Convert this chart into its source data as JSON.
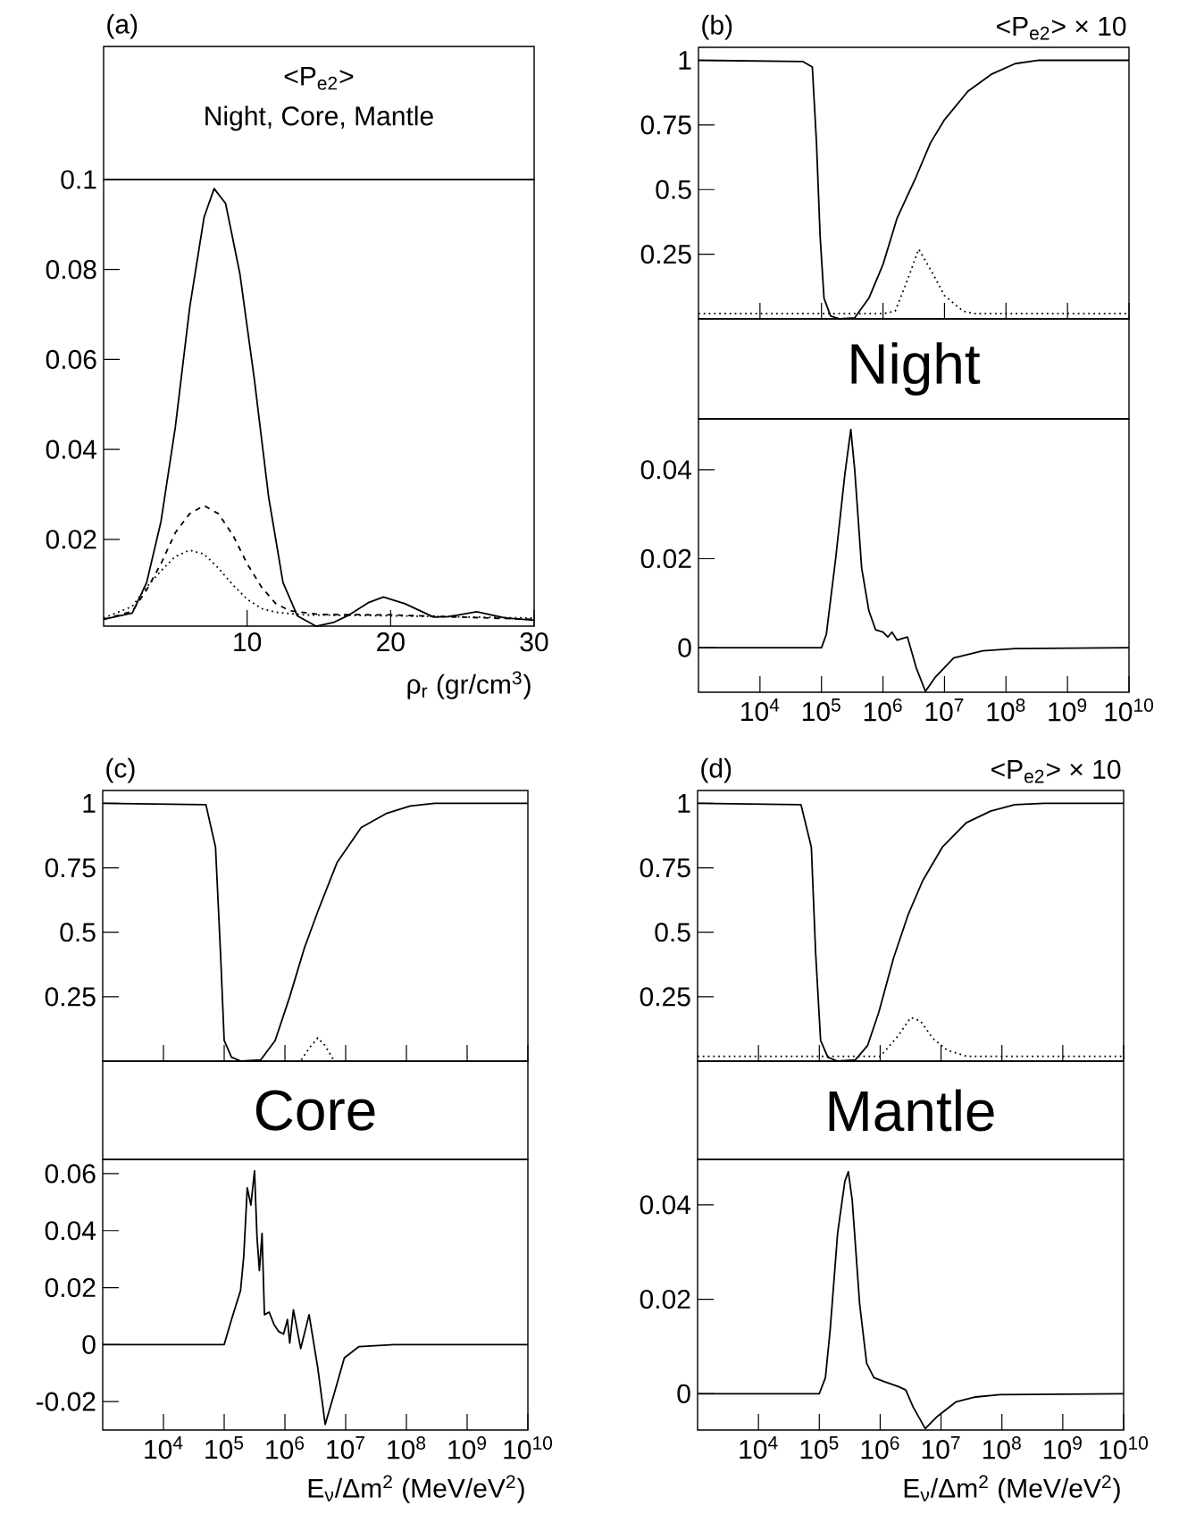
{
  "chart_data": [
    {
      "type": "line",
      "title": "(a)",
      "annotations": [
        "<P$_{e2}$>",
        "Night, Core, Mantle"
      ],
      "xlabel": "ρ$_{r}$ (gr/cm$^{3}$)",
      "xlim": [
        0,
        30
      ],
      "ylim": [
        0.0007,
        0.1
      ],
      "xticks": [
        10,
        20,
        30
      ],
      "yticks": [
        0.02,
        0.04,
        0.06,
        0.08,
        0.1
      ],
      "series": [
        {
          "color": "#000000",
          "line_style": "solid",
          "x": [
            0,
            2,
            3,
            4,
            5,
            6,
            7,
            7.7,
            8.5,
            9.5,
            10.5,
            11.5,
            12.5,
            13.5,
            14.8,
            16,
            17,
            18.5,
            19.5,
            21,
            23,
            24,
            26,
            28,
            30
          ],
          "values": [
            0.0022,
            0.0036,
            0.0104,
            0.024,
            0.045,
            0.0716,
            0.0916,
            0.098,
            0.0947,
            0.079,
            0.0557,
            0.0294,
            0.0104,
            0.003,
            0.0007,
            0.0015,
            0.003,
            0.006,
            0.0072,
            0.0057,
            0.0027,
            0.0028,
            0.0039,
            0.0025,
            0.002
          ]
        },
        {
          "color": "#000000",
          "line_style": "dashed",
          "x": [
            0,
            2,
            3,
            4,
            5,
            6,
            7,
            8,
            9,
            10,
            11,
            12,
            13,
            15,
            20,
            25,
            30
          ],
          "values": [
            0.0022,
            0.004,
            0.0088,
            0.0146,
            0.0215,
            0.0257,
            0.0275,
            0.0257,
            0.021,
            0.0146,
            0.0094,
            0.0057,
            0.0041,
            0.0033,
            0.0032,
            0.0027,
            0.0022
          ]
        },
        {
          "color": "#000000",
          "line_style": "dotted",
          "x": [
            0,
            2,
            3,
            4,
            5,
            6,
            7,
            8,
            9,
            10,
            11,
            12,
            14,
            20,
            30
          ],
          "values": [
            0.0025,
            0.0051,
            0.0094,
            0.013,
            0.0162,
            0.0176,
            0.0167,
            0.0136,
            0.0099,
            0.0067,
            0.0046,
            0.0038,
            0.0032,
            0.003,
            0.0025
          ]
        }
      ]
    },
    {
      "type": "line",
      "title": "(b)",
      "annotations": [
        "<P$_{e2}$> × 10"
      ],
      "log": "x",
      "tick_labels": "y",
      "xlim": [
        1000.0,
        10000000000.0
      ],
      "ylim": [
        0,
        1.05
      ],
      "xticks": [
        {
          "value": 10000.0,
          "label": null
        },
        {
          "value": 100000.0,
          "label": null
        },
        {
          "value": 1000000.0,
          "label": null
        },
        {
          "value": 10000000.0,
          "label": null
        },
        {
          "value": 100000000.0,
          "label": null
        },
        {
          "value": 1000000000.0,
          "label": null
        },
        {
          "value": 10000000000.0,
          "label": null
        }
      ],
      "yticks": [
        0.25,
        0.5,
        0.75,
        1
      ],
      "series": [
        {
          "color": "#000000",
          "line_style": "solid",
          "x": [
            1000.0,
            50000.0,
            71000.0,
            83000.0,
            95000.0,
            110000.0,
            141000.0,
            200000.0,
            347000.0,
            590000.0,
            1000000.0,
            1700000.0,
            3470000.0,
            5900000.0,
            10000000.0,
            24000000.0,
            59000000.0,
            141000000.0,
            347000000.0,
            10000000000.0
          ],
          "values": [
            1,
            0.995,
            0.974,
            0.68,
            0.32,
            0.08,
            0.011,
            0,
            0.004,
            0.08,
            0.21,
            0.39,
            0.55,
            0.68,
            0.77,
            0.88,
            0.947,
            0.987,
            1,
            1
          ]
        },
        {
          "color": "#000000",
          "line_style": "dotted",
          "x": [
            1000.0,
            1000000.0,
            1580000.0,
            2500000.0,
            3800000.0,
            6300000.0,
            10000000.0,
            20000000.0,
            31600000.0,
            10000000000.0
          ],
          "values": [
            0.02,
            0.02,
            0.03,
            0.15,
            0.27,
            0.18,
            0.09,
            0.03,
            0.02,
            0.02
          ]
        }
      ]
    },
    {
      "type": "line",
      "title": "Night",
      "log": "x",
      "xlim": [
        1000.0,
        10000000000.0
      ],
      "ylim": [
        -0.01,
        0.0514
      ],
      "xticks": [
        {
          "value": 10000.0,
          "label": "10$^{4}$"
        },
        {
          "value": 100000.0,
          "label": "10$^{5}$"
        },
        {
          "value": 1000000.0,
          "label": "10$^{6}$"
        },
        {
          "value": 10000000.0,
          "label": "10$^{7}$"
        },
        {
          "value": 100000000.0,
          "label": "10$^{8}$"
        },
        {
          "value": 1000000000.0,
          "label": "10$^{9}$"
        },
        {
          "value": 10000000000.0,
          "label": "10$^{10}$"
        }
      ],
      "yticks": [
        0,
        0.02,
        0.04
      ],
      "series": [
        {
          "color": "#000000",
          "line_style": "solid",
          "x": [
            1000.0,
            100000.0,
            120000.0,
            170000.0,
            240000.0,
            300000.0,
            347000.0,
            450000.0,
            590000.0,
            760000.0,
            1000000.0,
            1200000.0,
            1400000.0,
            1700000.0,
            2500000.0,
            3470000.0,
            4900000.0,
            7100000.0,
            14100000.0,
            42000000.0,
            141000000.0,
            10000000000.0
          ],
          "values": [
            0,
            0,
            0.003,
            0.02,
            0.039,
            0.049,
            0.04,
            0.0179,
            0.0083,
            0.004,
            0.0035,
            0.0024,
            0.0035,
            0.0017,
            0.0024,
            -0.0045,
            -0.0098,
            -0.0066,
            -0.0023,
            -0.0007,
            -0.0002,
            0
          ]
        }
      ]
    },
    {
      "type": "line",
      "title": "(c)",
      "log": "x",
      "tick_labels": "y",
      "xlim": [
        1000.0,
        10000000000.0
      ],
      "ylim": [
        0,
        1.05
      ],
      "xticks": [
        {
          "value": 10000.0,
          "label": null
        },
        {
          "value": 100000.0,
          "label": null
        },
        {
          "value": 1000000.0,
          "label": null
        },
        {
          "value": 10000000.0,
          "label": null
        },
        {
          "value": 100000000.0,
          "label": null
        },
        {
          "value": 1000000000.0,
          "label": null
        },
        {
          "value": 10000000000.0,
          "label": null
        }
      ],
      "yticks": [
        0.25,
        0.5,
        0.75,
        1
      ],
      "series": [
        {
          "color": "#000000",
          "line_style": "solid",
          "x": [
            1000.0,
            50000.0,
            72000.0,
            87000.0,
            100000.0,
            132000.0,
            190000.0,
            400000.0,
            690000.0,
            1200000.0,
            2100000.0,
            3600000.0,
            7200000.0,
            18000000.0,
            46000000.0,
            115000000.0,
            290000000.0,
            10000000000.0
          ],
          "values": [
            1,
            0.995,
            0.83,
            0.42,
            0.08,
            0.015,
            0,
            0.005,
            0.08,
            0.25,
            0.44,
            0.59,
            0.77,
            0.906,
            0.96,
            0.99,
            1,
            1
          ]
        },
        {
          "color": "#000000",
          "line_style": "dotted",
          "x": [
            1860000.0,
            2500000.0,
            3470000.0,
            4600000.0,
            6300000.0
          ],
          "values": [
            0.005,
            0.05,
            0.09,
            0.06,
            0.005
          ]
        }
      ]
    },
    {
      "type": "line",
      "title": "Core",
      "xlabel": "E$_{ν}$/Δm$^{2}$ (MeV/eV$^{2}$)",
      "log": "x",
      "xlim": [
        1000.0,
        10000000000.0
      ],
      "ylim": [
        -0.03,
        0.065
      ],
      "xticks": [
        {
          "value": 10000.0,
          "label": "10$^{4}$"
        },
        {
          "value": 100000.0,
          "label": "10$^{5}$"
        },
        {
          "value": 1000000.0,
          "label": "10$^{6}$"
        },
        {
          "value": 10000000.0,
          "label": "10$^{7}$"
        },
        {
          "value": 100000000.0,
          "label": "10$^{8}$"
        },
        {
          "value": 1000000000.0,
          "label": "10$^{9}$"
        },
        {
          "value": 10000000000.0,
          "label": "10$^{10}$"
        }
      ],
      "yticks": [
        -0.02,
        0,
        0.02,
        0.04,
        0.06
      ],
      "series": [
        {
          "color": "#000000",
          "line_style": "solid",
          "x": [
            1000.0,
            100000.0,
            132000.0,
            186000.0,
            210000.0,
            240000.0,
            275000.0,
            316000.0,
            347000.0,
            380000.0,
            420000.0,
            460000.0,
            550000.0,
            660000.0,
            790000.0,
            950000.0,
            1100000.0,
            1200000.0,
            1380000.0,
            1820000.0,
            2500000.0,
            3470000.0,
            4600000.0,
            6600000.0,
            9500000.0,
            16600000.0,
            63000000.0,
            10000000000.0
          ],
          "values": [
            0,
            0,
            0.0088,
            0.019,
            0.031,
            0.055,
            0.049,
            0.061,
            0.0376,
            0.026,
            0.039,
            0.0105,
            0.0114,
            0.0071,
            0.0046,
            0.0037,
            0.0088,
            0.0005,
            0.0122,
            -0.0014,
            0.0105,
            -0.0081,
            -0.028,
            -0.0166,
            -0.0047,
            -0.0007,
            0,
            0
          ]
        }
      ]
    },
    {
      "type": "line",
      "title": "(d)",
      "annotations": [
        "<P$_{e2}$> × 10"
      ],
      "log": "x",
      "tick_labels": "y",
      "xlim": [
        1000.0,
        10000000000.0
      ],
      "ylim": [
        0,
        1.05
      ],
      "xticks": [
        {
          "value": 10000.0,
          "label": null
        },
        {
          "value": 100000.0,
          "label": null
        },
        {
          "value": 1000000.0,
          "label": null
        },
        {
          "value": 10000000.0,
          "label": null
        },
        {
          "value": 100000000.0,
          "label": null
        },
        {
          "value": 1000000000.0,
          "label": null
        },
        {
          "value": 10000000000.0,
          "label": null
        }
      ],
      "yticks": [
        0.25,
        0.5,
        0.75,
        1
      ],
      "series": [
        {
          "color": "#000000",
          "line_style": "solid",
          "x": [
            1000.0,
            50000.0,
            74000.0,
            87000.0,
            105000.0,
            138000.0,
            200000.0,
            390000.0,
            620000.0,
            950000.0,
            1660000.0,
            2900000.0,
            5000000.0,
            10500000.0,
            26000000.0,
            65000000.0,
            162000000.0,
            500000000.0,
            10000000000.0
          ],
          "values": [
            1,
            0.995,
            0.83,
            0.42,
            0.08,
            0.015,
            0,
            0.005,
            0.06,
            0.19,
            0.4,
            0.57,
            0.7,
            0.83,
            0.925,
            0.97,
            0.995,
            1,
            1
          ]
        },
        {
          "color": "#000000",
          "line_style": "dotted",
          "x": [
            1000.0,
            1000000.0,
            1150000.0,
            2000000.0,
            3160000.0,
            4600000.0,
            7200000.0,
            12600000.0,
            26000000.0,
            10000000000.0
          ],
          "values": [
            0.019,
            0.019,
            0.034,
            0.1,
            0.169,
            0.156,
            0.09,
            0.043,
            0.019,
            0.019
          ]
        }
      ]
    },
    {
      "type": "line",
      "title": "Mantle",
      "xlabel": "E$_{ν}$/Δm$^{2}$ (MeV/eV$^{2}$)",
      "log": "x",
      "xlim": [
        1000.0,
        10000000000.0
      ],
      "ylim": [
        -0.0077,
        0.0496
      ],
      "xticks": [
        {
          "value": 10000.0,
          "label": "10$^{4}$"
        },
        {
          "value": 100000.0,
          "label": "10$^{5}$"
        },
        {
          "value": 1000000.0,
          "label": "10$^{6}$"
        },
        {
          "value": 10000000.0,
          "label": "10$^{7}$"
        },
        {
          "value": 100000000.0,
          "label": "10$^{8}$"
        },
        {
          "value": 1000000000.0,
          "label": "10$^{9}$"
        },
        {
          "value": 10000000000.0,
          "label": "10$^{10}$"
        }
      ],
      "yticks": [
        0,
        0.02,
        0.04
      ],
      "series": [
        {
          "color": "#000000",
          "line_style": "solid",
          "x": [
            1000.0,
            100000.0,
            126000.0,
            151000.0,
            200000.0,
            263000.0,
            300000.0,
            347000.0,
            460000.0,
            600000.0,
            790000.0,
            1150000.0,
            2000000.0,
            2630000.0,
            3470000.0,
            5500000.0,
            8700000.0,
            17800000.0,
            37000000.0,
            93000000.0,
            10000000000.0
          ],
          "values": [
            0,
            0,
            0.0034,
            0.0136,
            0.034,
            0.045,
            0.047,
            0.041,
            0.019,
            0.0064,
            0.0034,
            0.0026,
            0.0015,
            0.0008,
            -0.0028,
            -0.0074,
            -0.0048,
            -0.0017,
            -0.0007,
            -0.0002,
            0
          ]
        }
      ]
    }
  ]
}
